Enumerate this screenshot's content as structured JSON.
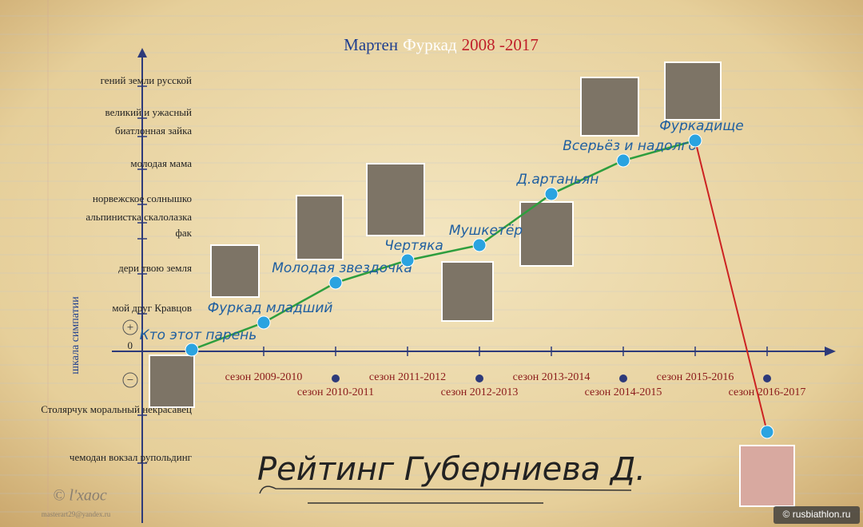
{
  "chart_data": {
    "type": "line",
    "title_parts": [
      {
        "text": "Мартен",
        "color": "#1f3f8f"
      },
      {
        "text": "Фуркад",
        "color": "#ffffff"
      },
      {
        "text": "2008 -2017",
        "color": "#c0202a"
      }
    ],
    "ylabel": "шкала симпатии",
    "positive_sign": "+",
    "negative_sign": "−",
    "categories": [
      null,
      "сезон 2009-2010",
      "сезон 2010-2011",
      "сезон 2011-2012",
      "сезон 2012-2013",
      "сезон 2013-2014",
      "сезон 2014-2015",
      "сезон 2015-2016",
      "сезон 2016-2017"
    ],
    "series": [
      {
        "name": "Мартен Фуркад",
        "color": "#2e9e3e",
        "decline_color": "#cc2222",
        "marker_color": "#2aa3e0",
        "values": [
          0.2,
          3.6,
          8.6,
          11.4,
          13.3,
          19.7,
          23.9,
          26.4,
          -10.1
        ],
        "point_labels": [
          "Кто этот парень",
          "Фуркад младший",
          "Молодая звездочка",
          "Чертяка",
          "Мушкетёр",
          "Д.артаньян",
          "Всерьёз и надолго",
          "Фуркадище",
          null
        ]
      }
    ],
    "ylim": [
      -21,
      37.5
    ],
    "yticks": [
      {
        "value": -14,
        "label": "чемодан вокзал рупольдинг"
      },
      {
        "value": -8,
        "label": "Столярчук моральный некрасавец"
      },
      0,
      {
        "value": 4.7,
        "label": "мой друг Кравцов"
      },
      {
        "value": 9.7,
        "label": "дери твою земля"
      },
      {
        "value": 14.1,
        "label": "фак"
      },
      {
        "value": 16.1,
        "label": "альпинистка скалолазка"
      },
      {
        "value": 18.4,
        "label": "норвежское солнышко"
      },
      {
        "value": 22.8,
        "label": "молодая мама"
      },
      {
        "value": 26.9,
        "label": "биатлонная зайка"
      },
      {
        "value": 29.2,
        "label": "великий и ужасный"
      },
      {
        "value": 33.2,
        "label": "гений земли русской"
      }
    ],
    "footer_title": "Рейтинг Губерниева Д.",
    "credits": [
      "© l'хаос",
      "masterart29@yandex.ru",
      "© rusbiathlon.ru"
    ]
  }
}
